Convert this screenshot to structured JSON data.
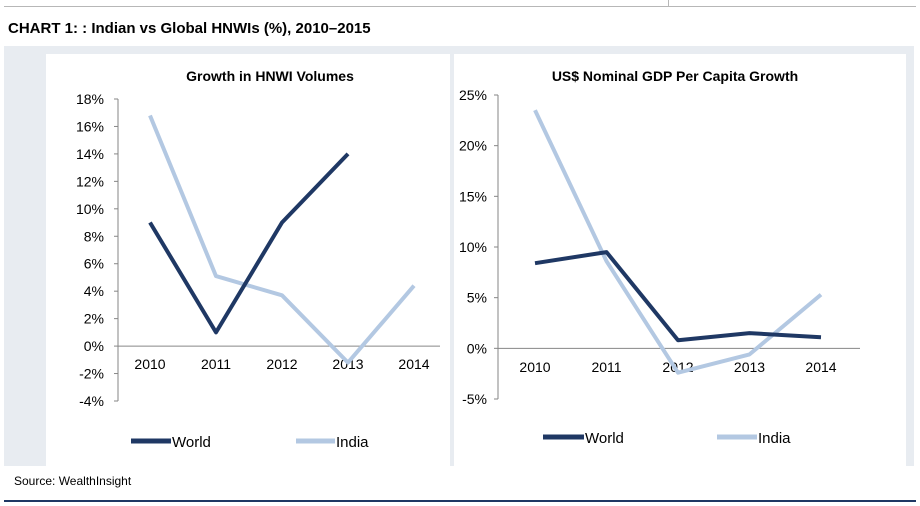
{
  "page": {
    "title": "CHART 1: : Indian vs Global HNWIs (%), 2010–2015",
    "source": "Source: WealthInsight"
  },
  "colors": {
    "world": "#1f3864",
    "india": "#b3c8e2",
    "panel_bg": "#e8ecf1"
  },
  "chart_data": [
    {
      "type": "line",
      "title": "Growth in HNWI Volumes",
      "categories": [
        "2010",
        "2011",
        "2012",
        "2013",
        "2014"
      ],
      "yticks": [
        "18%",
        "16%",
        "14%",
        "12%",
        "10%",
        "8%",
        "6%",
        "4%",
        "2%",
        "0%",
        "-2%",
        "-4%"
      ],
      "ylim": [
        -4,
        18
      ],
      "series": [
        {
          "name": "World",
          "values": [
            9,
            1,
            9,
            14,
            null
          ]
        },
        {
          "name": "India",
          "values": [
            16.8,
            5.1,
            3.7,
            -1.2,
            4.4
          ]
        }
      ],
      "legend": "bottom"
    },
    {
      "type": "line",
      "title": "US$ Nominal GDP Per Capita Growth",
      "categories": [
        "2010",
        "2011",
        "2012",
        "2013",
        "2014"
      ],
      "yticks": [
        "25%",
        "20%",
        "15%",
        "10%",
        "5%",
        "0%",
        "-5%"
      ],
      "ylim": [
        -5,
        25
      ],
      "series": [
        {
          "name": "World",
          "values": [
            8.4,
            9.5,
            0.8,
            1.5,
            1.1
          ]
        },
        {
          "name": "India",
          "values": [
            23.5,
            8.6,
            -2.4,
            -0.6,
            5.3
          ]
        }
      ],
      "legend": "bottom"
    }
  ]
}
